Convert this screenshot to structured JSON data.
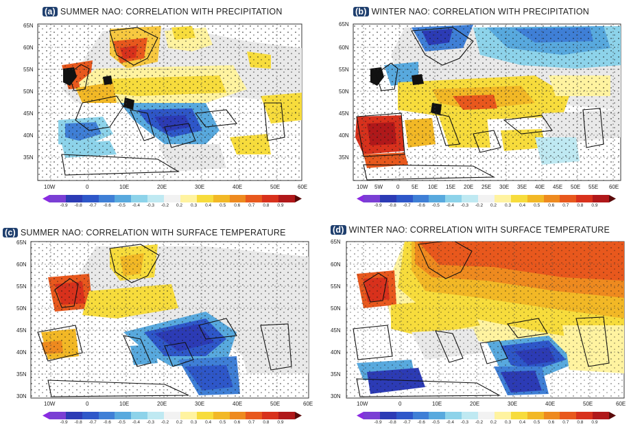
{
  "colorbar": {
    "labels": [
      "-0.9",
      "-0.8",
      "-0.7",
      "-0.6",
      "-0.5",
      "-0.4",
      "-0.3",
      "-0.2",
      "0.2",
      "0.3",
      "0.4",
      "0.5",
      "0.6",
      "0.7",
      "0.8",
      "0.9"
    ],
    "colors": [
      "#8a2be2",
      "#7a3fd4",
      "#2c3bb5",
      "#2e57c9",
      "#3f7fd6",
      "#58a9de",
      "#8dd3ea",
      "#bfe9f2",
      "#f2f2f2",
      "#fff3a0",
      "#f7dc3c",
      "#f2b826",
      "#ee8a1f",
      "#e8581d",
      "#d8311c",
      "#b0181a",
      "#5a0a0a"
    ]
  },
  "panels": [
    {
      "letter": "(a)",
      "title": "SUMMER NAO: CORRELATION WITH PRECIPITATION",
      "lat_labels": [
        "65N",
        "60N",
        "55N",
        "50N",
        "45N",
        "40N",
        "35N"
      ],
      "lon_labels": [
        "10W",
        "0",
        "10E",
        "20E",
        "30E",
        "40E",
        "50E",
        "60E"
      ]
    },
    {
      "letter": "(b)",
      "title": "WINTER NAO: CORRELATION WITH PRECIPITATION",
      "lat_labels": [
        "65N",
        "60N",
        "55N",
        "50N",
        "45N",
        "40N",
        "35N"
      ],
      "lon_labels": [
        "10W",
        "5W",
        "0",
        "5E",
        "10E",
        "15E",
        "20E",
        "25E",
        "30E",
        "35E",
        "40E",
        "45E",
        "50E",
        "55E",
        "60E"
      ]
    },
    {
      "letter": "(c)",
      "title": "SUMMER NAO: CORRELATION WITH SURFACE TEMPERATURE",
      "lat_labels": [
        "65N",
        "60N",
        "55N",
        "50N",
        "45N",
        "40N",
        "35N",
        "30N"
      ],
      "lon_labels": [
        "10W",
        "0",
        "10E",
        "20E",
        "30E",
        "40E",
        "50E",
        "60E"
      ]
    },
    {
      "letter": "(d)",
      "title": "WINTER NAO: CORRELATION WITH SURFACE TEMPERATURE",
      "lat_labels": [
        "65N",
        "60N",
        "55N",
        "50N",
        "45N",
        "40N",
        "35N",
        "30N"
      ],
      "lon_labels": [
        "10W",
        "0",
        "10E",
        "20E",
        "30E",
        "40E",
        "50E",
        "60E"
      ]
    }
  ]
}
